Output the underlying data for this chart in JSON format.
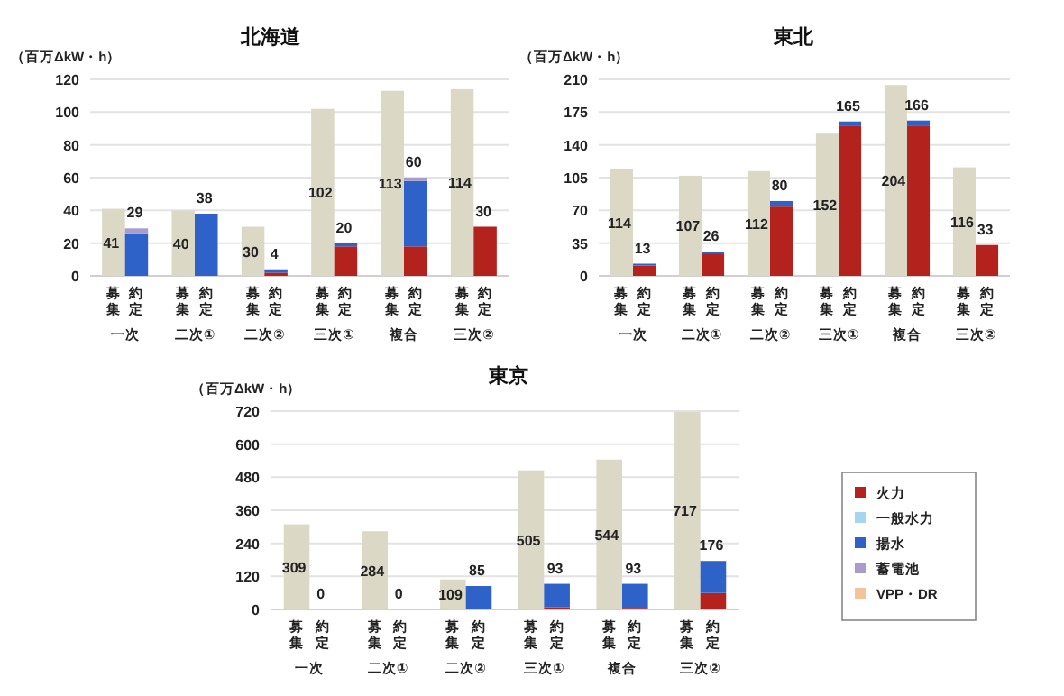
{
  "chart_data": [
    {
      "type": "bar",
      "title": "北海道",
      "ylabel": "（百万ΔkW・h）",
      "stacked": true,
      "grid": "y",
      "ylim": [
        0,
        120
      ],
      "yticks": [
        0,
        20,
        40,
        60,
        80,
        100,
        120
      ],
      "categories": [
        "募集",
        "約定",
        "募集",
        "約定",
        "募集",
        "約定",
        "募集",
        "約定",
        "募集",
        "約定",
        "募集",
        "約定"
      ],
      "series": [
        {
          "color": "#dcd8c6",
          "values": [
            41,
            null,
            40,
            null,
            30,
            null,
            102,
            null,
            113,
            null,
            114,
            null
          ]
        },
        {
          "color": "#b3221c",
          "values": [
            null,
            0,
            null,
            0,
            null,
            2,
            null,
            18,
            null,
            18,
            null,
            30
          ]
        },
        {
          "color": "#2e62c8",
          "values": [
            null,
            26,
            null,
            38,
            null,
            2,
            null,
            2,
            null,
            40,
            null,
            0
          ]
        },
        {
          "color": "#a99bcc",
          "values": [
            null,
            3,
            null,
            0,
            null,
            0,
            null,
            0,
            null,
            2,
            null,
            0
          ]
        }
      ],
      "totals": [
        "41",
        "29",
        "40",
        "38",
        "30",
        "4",
        "102",
        "20",
        "113",
        "60",
        "114",
        "30"
      ],
      "annotations": [
        "一次",
        "二次①",
        "二次②",
        "三次①",
        "複合",
        "三次②"
      ]
    },
    {
      "type": "bar",
      "title": "東北",
      "ylabel": "（百万ΔkW・h）",
      "stacked": true,
      "grid": "y",
      "ylim": [
        0,
        210
      ],
      "yticks": [
        0,
        35,
        70,
        105,
        140,
        175,
        210
      ],
      "categories": [
        "募集",
        "約定",
        "募集",
        "約定",
        "募集",
        "約定",
        "募集",
        "約定",
        "募集",
        "約定",
        "募集",
        "約定"
      ],
      "series": [
        {
          "color": "#dcd8c6",
          "values": [
            114,
            null,
            107,
            null,
            112,
            null,
            152,
            null,
            204,
            null,
            116,
            null
          ]
        },
        {
          "color": "#b3221c",
          "values": [
            null,
            11,
            null,
            24,
            null,
            74,
            null,
            160,
            null,
            160,
            null,
            33
          ]
        },
        {
          "color": "#2e62c8",
          "values": [
            null,
            2,
            null,
            2,
            null,
            6,
            null,
            5,
            null,
            6,
            null,
            0
          ]
        }
      ],
      "totals": [
        "114",
        "13",
        "107",
        "26",
        "112",
        "80",
        "152",
        "165",
        "204",
        "166",
        "116",
        "33"
      ],
      "annotations": [
        "一次",
        "二次①",
        "二次②",
        "三次①",
        "複合",
        "三次②"
      ]
    },
    {
      "type": "bar",
      "title": "東京",
      "ylabel": "（百万ΔkW・h）",
      "stacked": true,
      "grid": "y",
      "ylim": [
        0,
        720
      ],
      "yticks": [
        0,
        120,
        240,
        360,
        480,
        600,
        720
      ],
      "legend": "right",
      "categories": [
        "募集",
        "約定",
        "募集",
        "約定",
        "募集",
        "約定",
        "募集",
        "約定",
        "募集",
        "約定",
        "募集",
        "約定"
      ],
      "series": [
        {
          "color": "#dcd8c6",
          "values": [
            309,
            null,
            284,
            null,
            109,
            null,
            505,
            null,
            544,
            null,
            717,
            null
          ]
        },
        {
          "name": "火力",
          "color": "#b3221c",
          "values": [
            null,
            0,
            null,
            0,
            null,
            0,
            null,
            8,
            null,
            6,
            null,
            60
          ]
        },
        {
          "name": "一般水力",
          "color": "#a6d6ee",
          "values": [
            null,
            0,
            null,
            0,
            null,
            0,
            null,
            0,
            null,
            0,
            null,
            0
          ]
        },
        {
          "name": "揚水",
          "color": "#2e62c8",
          "values": [
            null,
            0,
            null,
            0,
            null,
            85,
            null,
            85,
            null,
            87,
            null,
            116
          ]
        },
        {
          "name": "蓄電池",
          "color": "#a99bcc",
          "values": [
            null,
            0,
            null,
            0,
            null,
            0,
            null,
            0,
            null,
            0,
            null,
            0
          ]
        },
        {
          "name": "VPP・DR",
          "color": "#f3c39a",
          "values": [
            null,
            0,
            null,
            0,
            null,
            0,
            null,
            0,
            null,
            0,
            null,
            0
          ]
        }
      ],
      "totals": [
        "309",
        "0",
        "284",
        "0",
        "109",
        "85",
        "505",
        "93",
        "544",
        "93",
        "717",
        "176"
      ],
      "annotations": [
        "一次",
        "二次①",
        "二次②",
        "三次①",
        "複合",
        "三次②"
      ]
    }
  ]
}
